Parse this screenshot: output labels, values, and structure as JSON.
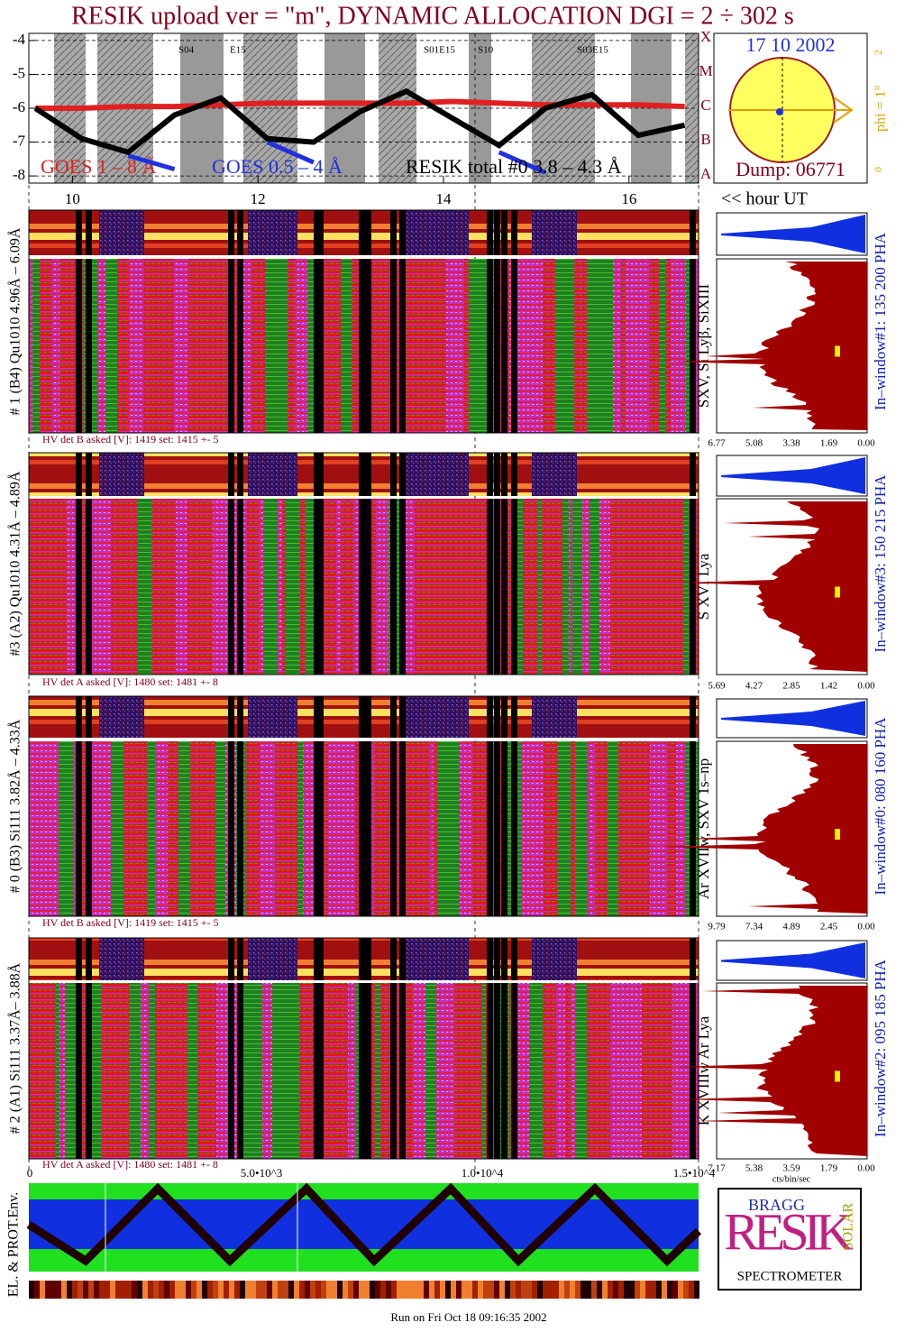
{
  "title": "RESIK upload ver = \"m\", DYNAMIC ALLOCATION  DGI =   2 ÷ 302 s",
  "chart_data": {
    "type": "line",
    "x": [
      9.6,
      10.1,
      10.6,
      11.1,
      11.6,
      12.1,
      12.6,
      13.1,
      13.6,
      14.1,
      14.6,
      15.1,
      15.6,
      16.1,
      16.6
    ],
    "xlim": [
      9.53,
      16.75
    ],
    "xticks": [
      10,
      12,
      14,
      16
    ],
    "x_label": "<< hour UT",
    "ylim": [
      -8.21,
      -3.79
    ],
    "yticks": [
      -4,
      -5,
      -6,
      -7,
      -8
    ],
    "grid": true,
    "series": [
      {
        "name": "GOES 1 – 8 Å",
        "color": "#e02020",
        "values": [
          -6.0,
          -6.0,
          -5.95,
          -5.95,
          -5.9,
          -5.85,
          -5.85,
          -5.85,
          -5.85,
          -5.8,
          -5.85,
          -5.9,
          -5.9,
          -5.9,
          -5.95
        ]
      },
      {
        "name": "GOES 0.5 – 4 Å",
        "color": "#2030e0",
        "values": [
          null,
          null,
          -7.4,
          -7.8,
          null,
          -7.0,
          -7.6,
          null,
          null,
          null,
          -7.3,
          -7.9,
          null,
          null,
          null
        ]
      },
      {
        "name": "RESIK total #0 3.8 – 4.3 Å",
        "color": "#000000",
        "values": [
          -6.0,
          -6.9,
          -7.3,
          -6.2,
          -5.7,
          -6.9,
          -7.0,
          -6.1,
          -5.5,
          -6.3,
          -7.1,
          -6.0,
          -5.6,
          -6.8,
          -6.5
        ]
      }
    ]
  },
  "segment_labels": [
    "S04",
    "E15",
    "S01E15",
    "S10",
    "S03E15"
  ],
  "orbit": {
    "date": "17 10 2002",
    "dump": "Dump: 06771",
    "phi": "phi =  1°",
    "phi_ticks": [
      "0",
      "1",
      "2"
    ],
    "classes": [
      "X",
      "M",
      "C",
      "B",
      "A"
    ]
  },
  "panels": [
    {
      "label": "# 1 (B4) Qu1010 4.96Å – 6.09Å",
      "hv": "HV det B asked [V]:  1419 set:  1415  +-    5",
      "line": "SXV, Si Lyβ, SiXIII",
      "window": "In–window#1:  135 200 PHA",
      "ticks": [
        "6.77",
        "5.08",
        "3.38",
        "1.69",
        "0.00"
      ]
    },
    {
      "label": "#3 (A2) Qu1010  4.31Å – 4.89Å",
      "hv": "HV det A asked [V]:  1480 set:  1481  +-    8",
      "line": "S XVI Lya",
      "window": "In–window#3:  150 215 PHA",
      "ticks": [
        "5.69",
        "4.27",
        "2.85",
        "1.42",
        "0.00"
      ]
    },
    {
      "label": "# 0 (B3) Si111  3.82Å – 4.33Å",
      "hv": "HV det B asked [V]:  1419 set:  1415  +-    5",
      "line": "Ar XVIIw,  SXV 1s–np",
      "window": "In–window#0:  080 160 PHA",
      "ticks": [
        "9.79",
        "7.34",
        "4.89",
        "2.45",
        "0.00"
      ]
    },
    {
      "label": "# 2 (A1) Si111  3.37Å– 3.88Å",
      "hv": "HV det A asked [V]:  1480 set:  1481  +-    8",
      "line": "K XVIIIw  Ar Lya",
      "window": "In–window#2:  095 185 PHA",
      "ticks": [
        "7.17",
        "5.38",
        "3.59",
        "1.79",
        "0.00"
      ]
    }
  ],
  "hist_unit": "cts/bin/sec",
  "env": {
    "label": "EL. & PROT.Env.",
    "ticks": [
      "0",
      "5.0•10^3",
      "1.0•10^4",
      "1.5•10^4"
    ]
  },
  "logo": {
    "top": "BRAGG",
    "main": "RESIK",
    "side": "SOLAR",
    "bottom": "SPECTROMETER"
  },
  "footer": "Run on Fri Oct 18 09:16:35 2002"
}
